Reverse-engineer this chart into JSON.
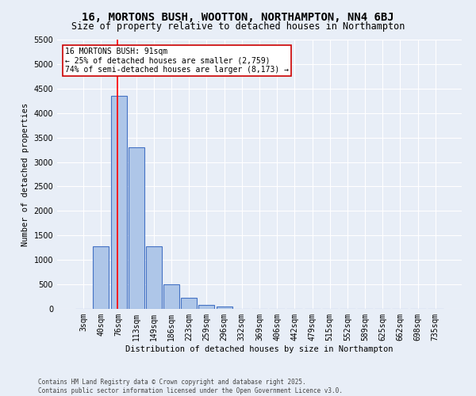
{
  "title": "16, MORTONS BUSH, WOOTTON, NORTHAMPTON, NN4 6BJ",
  "subtitle": "Size of property relative to detached houses in Northampton",
  "xlabel": "Distribution of detached houses by size in Northampton",
  "ylabel": "Number of detached properties",
  "footer_line1": "Contains HM Land Registry data © Crown copyright and database right 2025.",
  "footer_line2": "Contains public sector information licensed under the Open Government Licence v3.0.",
  "bar_labels": [
    "3sqm",
    "40sqm",
    "76sqm",
    "113sqm",
    "149sqm",
    "186sqm",
    "223sqm",
    "259sqm",
    "296sqm",
    "332sqm",
    "369sqm",
    "406sqm",
    "442sqm",
    "479sqm",
    "515sqm",
    "552sqm",
    "589sqm",
    "625sqm",
    "662sqm",
    "698sqm",
    "735sqm"
  ],
  "bar_values": [
    0,
    1270,
    4350,
    3300,
    1280,
    500,
    220,
    80,
    55,
    0,
    0,
    0,
    0,
    0,
    0,
    0,
    0,
    0,
    0,
    0,
    0
  ],
  "bar_color": "#aec6e8",
  "bar_edge_color": "#4472c4",
  "annotation_line1": "16 MORTONS BUSH: 91sqm",
  "annotation_line2": "← 25% of detached houses are smaller (2,759)",
  "annotation_line3": "74% of semi-detached houses are larger (8,173) →",
  "annotation_box_color": "#ffffff",
  "annotation_box_edge": "#cc0000",
  "ylim": [
    0,
    5500
  ],
  "yticks": [
    0,
    500,
    1000,
    1500,
    2000,
    2500,
    3000,
    3500,
    4000,
    4500,
    5000,
    5500
  ],
  "bg_color": "#e8eef7",
  "title_fontsize": 10,
  "subtitle_fontsize": 8.5,
  "axis_label_fontsize": 7.5,
  "tick_fontsize": 7,
  "annotation_fontsize": 7,
  "footer_fontsize": 5.5
}
